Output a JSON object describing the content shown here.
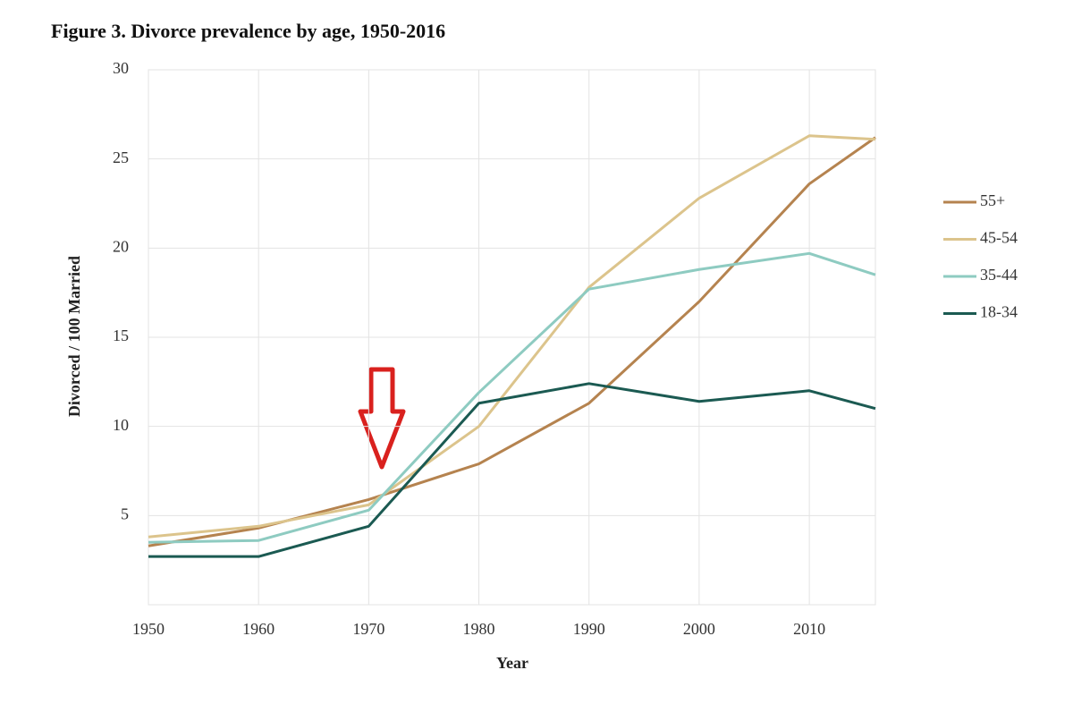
{
  "chart_data": {
    "type": "line",
    "title": "Figure 3. Divorce prevalence by age, 1950-2016",
    "xlabel": "Year",
    "ylabel": "Divorced / 100 Married",
    "x": [
      1950,
      1960,
      1970,
      1980,
      1990,
      2000,
      2010,
      2016
    ],
    "series": [
      {
        "name": "55+",
        "color": "#b5834f",
        "values": [
          3.3,
          4.3,
          5.9,
          7.9,
          11.3,
          17.0,
          23.6,
          26.2
        ]
      },
      {
        "name": "45-54",
        "color": "#dcc48c",
        "values": [
          3.8,
          4.4,
          5.6,
          10.0,
          17.8,
          22.8,
          26.3,
          26.1
        ]
      },
      {
        "name": "35-44",
        "color": "#8ecbc1",
        "values": [
          3.5,
          3.6,
          5.3,
          11.9,
          17.7,
          18.8,
          19.7,
          18.5
        ]
      },
      {
        "name": "18-34",
        "color": "#1b5a52",
        "values": [
          2.7,
          2.7,
          4.4,
          11.3,
          12.4,
          11.4,
          12.0,
          11.0
        ]
      }
    ],
    "xlim": [
      1950,
      2016
    ],
    "xticks": [
      1950,
      1960,
      1970,
      1980,
      1990,
      2000,
      2010
    ],
    "ylim": [
      0,
      30
    ],
    "yticks": [
      5,
      10,
      15,
      20,
      25,
      30
    ],
    "grid": true,
    "legend": "right"
  }
}
